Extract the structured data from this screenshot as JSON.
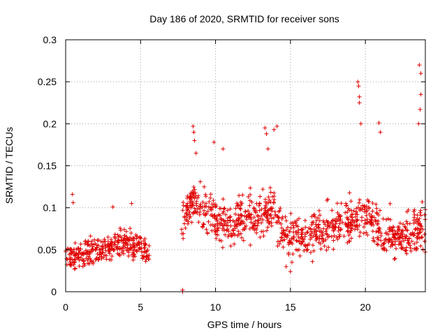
{
  "chart_data": {
    "type": "scatter",
    "title": "Day 186 of 2020, SRMTID for receiver sons",
    "xlabel": "GPS time / hours",
    "ylabel": "SRMTID / TECUs",
    "xlim": [
      0,
      24
    ],
    "ylim": [
      0,
      0.3
    ],
    "xticks": [
      0,
      5,
      10,
      15,
      20
    ],
    "xtick_labels": [
      "0",
      "5",
      "10",
      "15",
      "20"
    ],
    "yticks": [
      0,
      0.05,
      0.1,
      0.15,
      0.2,
      0.25,
      0.3
    ],
    "ytick_labels": [
      "0",
      "0.05",
      "0.1",
      "0.15",
      "0.2",
      "0.25",
      "0.3"
    ],
    "grid": true,
    "marker": "+",
    "color": "#e00000",
    "series": [
      {
        "name": "SRMTID",
        "trend": [
          [
            0.0,
            0.04
          ],
          [
            1.0,
            0.045
          ],
          [
            2.0,
            0.048
          ],
          [
            3.0,
            0.055
          ],
          [
            4.0,
            0.06
          ],
          [
            5.0,
            0.055
          ],
          [
            5.5,
            0.045
          ],
          [
            7.8,
            0.08
          ],
          [
            8.5,
            0.11
          ],
          [
            9.0,
            0.1
          ],
          [
            10.0,
            0.085
          ],
          [
            11.0,
            0.08
          ],
          [
            12.0,
            0.09
          ],
          [
            13.0,
            0.09
          ],
          [
            13.8,
            0.1
          ],
          [
            14.5,
            0.075
          ],
          [
            15.0,
            0.06
          ],
          [
            16.0,
            0.065
          ],
          [
            17.0,
            0.07
          ],
          [
            18.0,
            0.08
          ],
          [
            19.0,
            0.085
          ],
          [
            20.0,
            0.09
          ],
          [
            21.0,
            0.07
          ],
          [
            22.0,
            0.065
          ],
          [
            23.0,
            0.07
          ],
          [
            24.0,
            0.08
          ]
        ],
        "spikes": [
          [
            0.45,
            0.116
          ],
          [
            0.5,
            0.106
          ],
          [
            3.15,
            0.101
          ],
          [
            4.4,
            0.105
          ],
          [
            8.5,
            0.197
          ],
          [
            8.55,
            0.19
          ],
          [
            8.6,
            0.18
          ],
          [
            8.7,
            0.165
          ],
          [
            9.9,
            0.178
          ],
          [
            10.5,
            0.17
          ],
          [
            13.3,
            0.195
          ],
          [
            13.4,
            0.188
          ],
          [
            13.5,
            0.17
          ],
          [
            13.9,
            0.193
          ],
          [
            14.1,
            0.197
          ],
          [
            19.5,
            0.25
          ],
          [
            19.55,
            0.245
          ],
          [
            19.6,
            0.232
          ],
          [
            19.6,
            0.225
          ],
          [
            19.7,
            0.2
          ],
          [
            20.9,
            0.201
          ],
          [
            21.0,
            0.19
          ],
          [
            23.6,
            0.27
          ],
          [
            23.7,
            0.26
          ],
          [
            23.7,
            0.235
          ],
          [
            23.65,
            0.217
          ],
          [
            23.55,
            0.2
          ]
        ],
        "low_points": [
          [
            7.8,
            0.0
          ],
          [
            7.8,
            0.002
          ]
        ],
        "total_points": 1400,
        "gap_hours": [
          5.6,
          7.7
        ]
      }
    ]
  }
}
